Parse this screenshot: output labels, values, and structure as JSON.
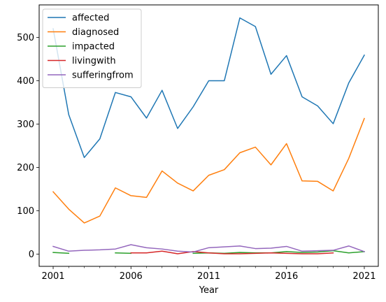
{
  "chart_data": {
    "type": "line",
    "xlabel": "Year",
    "ylabel": "",
    "title": "",
    "xlim": [
      2000.1,
      2021.9
    ],
    "ylim": [
      -28,
      575
    ],
    "xticks": [
      2001,
      2006,
      2011,
      2016,
      2021
    ],
    "minor_xticks": [
      2002,
      2003,
      2004,
      2005,
      2007,
      2008,
      2009,
      2010,
      2012,
      2013,
      2014,
      2015,
      2017,
      2018,
      2019,
      2020
    ],
    "yticks": [
      0,
      100,
      200,
      300,
      400,
      500
    ],
    "grid": false,
    "legend": "top-left",
    "series": [
      {
        "name": "affected",
        "color": "#1f77b4",
        "values": [
          [
            2001,
            520
          ],
          [
            2002,
            322
          ],
          [
            2003,
            223
          ],
          [
            2004,
            266
          ],
          [
            2005,
            373
          ],
          [
            2006,
            363
          ],
          [
            2007,
            314
          ],
          [
            2008,
            378
          ],
          [
            2009,
            290
          ],
          [
            2010,
            340
          ],
          [
            2011,
            400
          ],
          [
            2012,
            400
          ],
          [
            2013,
            545
          ],
          [
            2014,
            525
          ],
          [
            2015,
            415
          ],
          [
            2016,
            458
          ],
          [
            2017,
            363
          ],
          [
            2018,
            342
          ],
          [
            2019,
            301
          ],
          [
            2020,
            395
          ],
          [
            2021,
            459
          ]
        ]
      },
      {
        "name": "diagnosed",
        "color": "#ff7f0e",
        "values": [
          [
            2001,
            144
          ],
          [
            2002,
            104
          ],
          [
            2003,
            72
          ],
          [
            2004,
            88
          ],
          [
            2005,
            153
          ],
          [
            2006,
            135
          ],
          [
            2007,
            131
          ],
          [
            2008,
            192
          ],
          [
            2009,
            164
          ],
          [
            2010,
            146
          ],
          [
            2011,
            182
          ],
          [
            2012,
            195
          ],
          [
            2013,
            234
          ],
          [
            2014,
            247
          ],
          [
            2015,
            206
          ],
          [
            2016,
            255
          ],
          [
            2017,
            169
          ],
          [
            2018,
            168
          ],
          [
            2019,
            146
          ],
          [
            2020,
            221
          ],
          [
            2021,
            313
          ]
        ]
      },
      {
        "name": "impacted",
        "color": "#2ca02c",
        "segments": [
          [
            [
              2001,
              4
            ],
            [
              2002,
              2
            ]
          ],
          [
            [
              2005,
              3
            ],
            [
              2006,
              2
            ]
          ],
          [
            [
              2010,
              2
            ],
            [
              2011,
              3
            ],
            [
              2012,
              2
            ],
            [
              2013,
              4
            ],
            [
              2014,
              3
            ],
            [
              2015,
              3
            ],
            [
              2016,
              6
            ],
            [
              2017,
              4
            ],
            [
              2018,
              5
            ],
            [
              2019,
              8
            ],
            [
              2020,
              3
            ],
            [
              2021,
              6
            ]
          ]
        ]
      },
      {
        "name": "livingwith",
        "color": "#d62728",
        "segments": [
          [
            [
              2006,
              3
            ],
            [
              2007,
              3
            ],
            [
              2008,
              7
            ],
            [
              2009,
              1
            ],
            [
              2010,
              6
            ],
            [
              2011,
              3
            ],
            [
              2012,
              1
            ],
            [
              2013,
              1
            ],
            [
              2014,
              2
            ],
            [
              2015,
              3
            ],
            [
              2016,
              2
            ],
            [
              2017,
              1
            ],
            [
              2018,
              1
            ],
            [
              2019,
              3
            ]
          ]
        ]
      },
      {
        "name": "sufferingfrom",
        "color": "#9467bd",
        "values": [
          [
            2001,
            18
          ],
          [
            2002,
            7
          ],
          [
            2003,
            9
          ],
          [
            2004,
            10
          ],
          [
            2005,
            12
          ],
          [
            2006,
            22
          ],
          [
            2007,
            15
          ],
          [
            2008,
            12
          ],
          [
            2009,
            7
          ],
          [
            2010,
            5
          ],
          [
            2011,
            15
          ],
          [
            2012,
            17
          ],
          [
            2013,
            19
          ],
          [
            2014,
            13
          ],
          [
            2015,
            14
          ],
          [
            2016,
            18
          ],
          [
            2017,
            7
          ],
          [
            2018,
            8
          ],
          [
            2019,
            9
          ],
          [
            2020,
            19
          ],
          [
            2021,
            6
          ]
        ]
      }
    ]
  }
}
